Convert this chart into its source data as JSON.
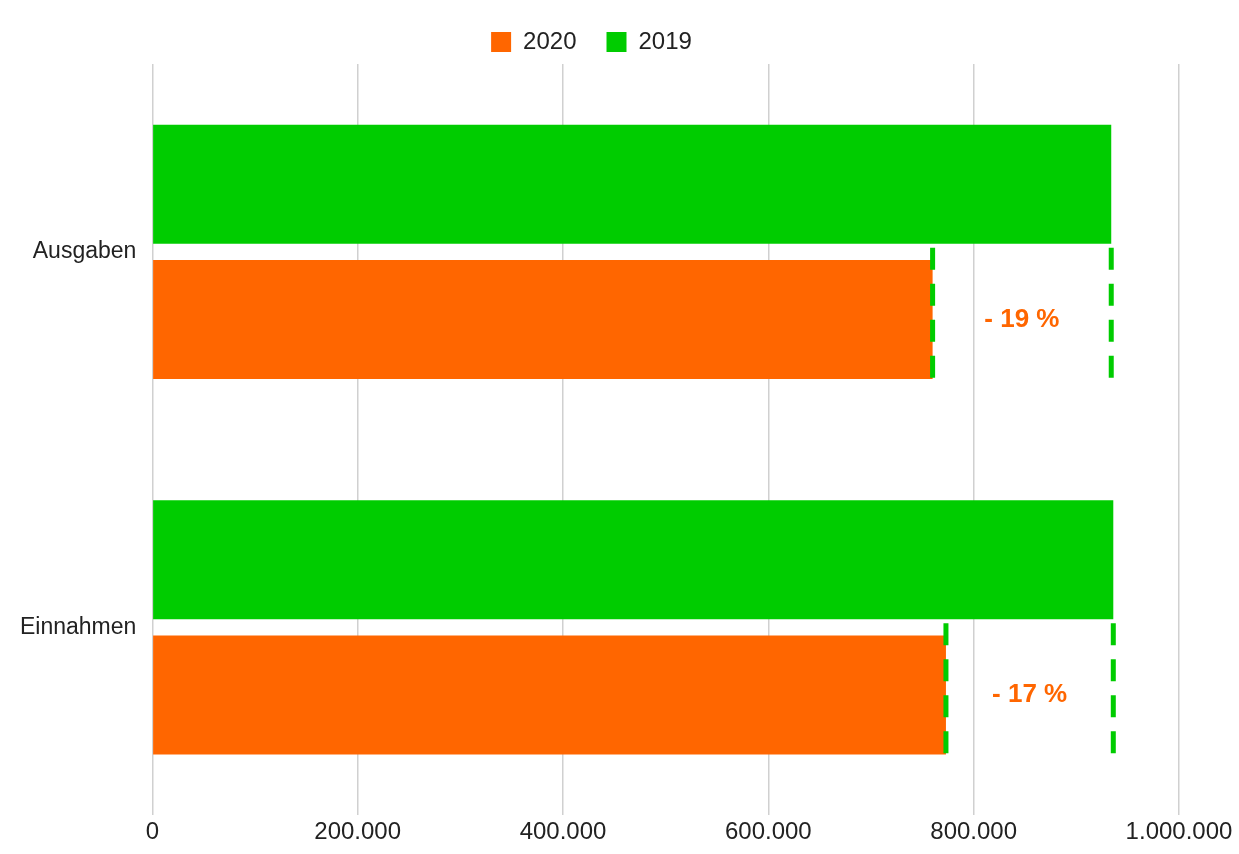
{
  "chart_data": {
    "type": "bar",
    "orientation": "horizontal",
    "categories": [
      "Ausgaben",
      "Einnahmen"
    ],
    "series": [
      {
        "name": "2019",
        "color": "#00cc00",
        "values": [
          934000,
          936000
        ]
      },
      {
        "name": "2020",
        "color": "#ff6600",
        "values": [
          760000,
          773000
        ]
      }
    ],
    "xlim": [
      0,
      1000000
    ],
    "xticks": [
      0,
      {
        "value": 200000,
        "label": "200.000"
      },
      {
        "value": 400000,
        "label": "400.000"
      },
      {
        "value": 600000,
        "label": "600.000"
      },
      {
        "value": 800000,
        "label": "800.000"
      },
      {
        "value": 1000000,
        "label": "1.000.000"
      }
    ],
    "ref_lines": [
      {
        "axis": "x",
        "value": 760000,
        "color": "#00cc00",
        "line_style": "dashed"
      },
      {
        "axis": "x",
        "value": 934000,
        "color": "#00cc00",
        "line_style": "dashed"
      },
      {
        "axis": "x",
        "value": 773000,
        "color": "#00cc00",
        "line_style": "dashed"
      },
      {
        "axis": "x",
        "value": 936000,
        "color": "#00cc00",
        "line_style": "dashed"
      }
    ],
    "grid": "x",
    "legend": "top",
    "annotations": [
      "- 19 %",
      "- 17 %"
    ]
  }
}
